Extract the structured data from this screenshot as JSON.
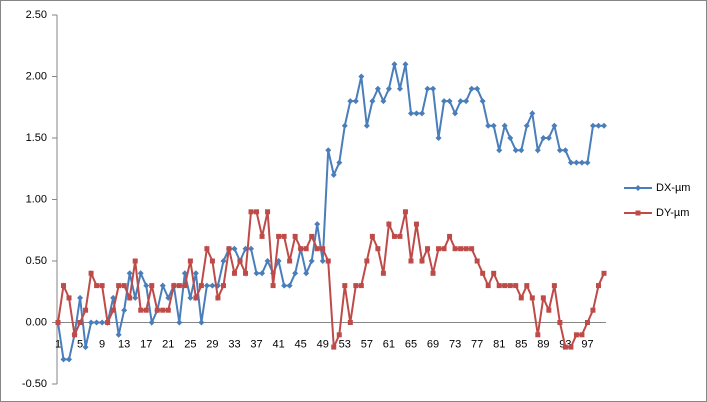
{
  "chart_data": {
    "type": "line",
    "categories": [
      1,
      null,
      null,
      null,
      5,
      null,
      null,
      null,
      9,
      null,
      null,
      null,
      13,
      null,
      null,
      null,
      17,
      null,
      null,
      null,
      21,
      null,
      null,
      null,
      25,
      null,
      null,
      null,
      29,
      null,
      null,
      null,
      33,
      null,
      null,
      null,
      37,
      null,
      null,
      null,
      41,
      null,
      null,
      null,
      45,
      null,
      null,
      null,
      49,
      null,
      null,
      null,
      53,
      null,
      null,
      null,
      57,
      null,
      null,
      null,
      61,
      null,
      null,
      null,
      65,
      null,
      null,
      null,
      69,
      null,
      null,
      null,
      73,
      null,
      null,
      null,
      77,
      null,
      null,
      null,
      81,
      null,
      null,
      null,
      85,
      null,
      null,
      null,
      89,
      null,
      null,
      null,
      93,
      null,
      null,
      null,
      97,
      null,
      null,
      null
    ],
    "series": [
      {
        "name": "DX-µm",
        "color": "#4a7ebb",
        "marker": "diamond",
        "values": [
          0,
          -0.3,
          -0.3,
          -0.1,
          0.2,
          -0.2,
          0,
          0,
          0,
          0,
          0.2,
          -0.1,
          0.1,
          0.4,
          0.2,
          0.4,
          0.3,
          0,
          0.1,
          0.3,
          0.2,
          0.3,
          0,
          0.4,
          0.2,
          0.4,
          0,
          0.3,
          0.3,
          0.3,
          0.5,
          0.6,
          0.6,
          0.5,
          0.6,
          0.6,
          0.4,
          0.4,
          0.5,
          0.4,
          0.5,
          0.3,
          0.3,
          0.4,
          0.6,
          0.4,
          0.5,
          0.8,
          0.5,
          1.4,
          1.2,
          1.3,
          1.6,
          1.8,
          1.8,
          2.0,
          1.6,
          1.8,
          1.9,
          1.8,
          1.9,
          2.1,
          1.9,
          2.1,
          1.7,
          1.7,
          1.7,
          1.9,
          1.9,
          1.5,
          1.8,
          1.8,
          1.7,
          1.8,
          1.8,
          1.9,
          1.9,
          1.8,
          1.6,
          1.6,
          1.4,
          1.6,
          1.5,
          1.4,
          1.4,
          1.6,
          1.7,
          1.4,
          1.5,
          1.5,
          1.6,
          1.4,
          1.4,
          1.3,
          1.3,
          1.3,
          1.3,
          1.6,
          1.6,
          1.6
        ]
      },
      {
        "name": "DY-µm",
        "color": "#be4b48",
        "marker": "square",
        "values": [
          0,
          0.3,
          0.2,
          -0.1,
          0,
          0.1,
          0.4,
          0.3,
          0.3,
          0,
          0.1,
          0.3,
          0.3,
          0.2,
          0.5,
          0.1,
          0.1,
          0.3,
          0.1,
          0.1,
          0.1,
          0.3,
          0.3,
          0.3,
          0.5,
          0.2,
          0.3,
          0.6,
          0.5,
          0.2,
          0.3,
          0.6,
          0.4,
          0.5,
          0.4,
          0.9,
          0.9,
          0.7,
          0.9,
          0.3,
          0.7,
          0.7,
          0.5,
          0.7,
          0.6,
          0.6,
          0.7,
          0.6,
          0.6,
          0.5,
          -0.2,
          -0.1,
          0.3,
          0,
          0.3,
          0.3,
          0.5,
          0.7,
          0.6,
          0.4,
          0.8,
          0.7,
          0.7,
          0.9,
          0.5,
          0.8,
          0.5,
          0.6,
          0.4,
          0.6,
          0.6,
          0.7,
          0.6,
          0.6,
          0.6,
          0.6,
          0.5,
          0.4,
          0.3,
          0.4,
          0.3,
          0.3,
          0.3,
          0.3,
          0.2,
          0.3,
          0.2,
          -0.1,
          0.2,
          0.1,
          0.3,
          0,
          -0.2,
          -0.2,
          -0.1,
          -0.1,
          0,
          0.1,
          0.3,
          0.4
        ]
      }
    ],
    "ylim": [
      -0.5,
      2.5
    ],
    "yticks": [
      {
        "value": -0.5,
        "label": "-0.50"
      },
      {
        "value": 0,
        "label": "0.00"
      },
      {
        "value": 0.5,
        "label": "0.50"
      },
      {
        "value": 1,
        "label": "1.00"
      },
      {
        "value": 1.5,
        "label": "1.50"
      },
      {
        "value": 2,
        "label": "2.00"
      },
      {
        "value": 2.5,
        "label": "2.50"
      }
    ],
    "grid": false,
    "legend": "right"
  }
}
